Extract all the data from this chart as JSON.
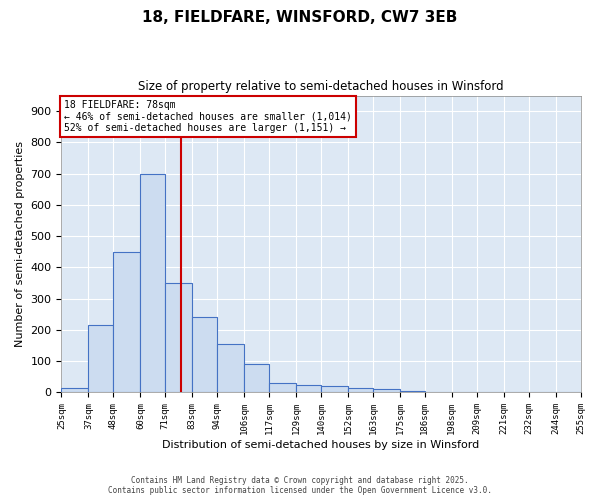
{
  "title1": "18, FIELDFARE, WINSFORD, CW7 3EB",
  "title2": "Size of property relative to semi-detached houses in Winsford",
  "xlabel": "Distribution of semi-detached houses by size in Winsford",
  "ylabel": "Number of semi-detached properties",
  "annotation_title": "18 FIELDFARE: 78sqm",
  "annotation_line1": "← 46% of semi-detached houses are smaller (1,014)",
  "annotation_line2": "52% of semi-detached houses are larger (1,151) →",
  "footer1": "Contains HM Land Registry data © Crown copyright and database right 2025.",
  "footer2": "Contains public sector information licensed under the Open Government Licence v3.0.",
  "bar_left_edges": [
    25,
    37,
    48,
    60,
    71,
    83,
    94,
    106,
    117,
    129,
    140,
    152,
    163,
    175,
    186,
    198,
    209,
    221,
    232,
    244
  ],
  "bar_widths": [
    12,
    11,
    12,
    11,
    12,
    11,
    12,
    11,
    12,
    11,
    12,
    11,
    12,
    11,
    12,
    11,
    12,
    11,
    12,
    11
  ],
  "bar_heights": [
    15,
    215,
    450,
    700,
    350,
    240,
    155,
    90,
    30,
    25,
    20,
    15,
    10,
    5,
    3,
    2,
    1,
    0,
    0,
    0
  ],
  "bar_color": "#ccdcf0",
  "bar_edge_color": "#4472c4",
  "tick_labels": [
    "25sqm",
    "37sqm",
    "48sqm",
    "60sqm",
    "71sqm",
    "83sqm",
    "94sqm",
    "106sqm",
    "117sqm",
    "129sqm",
    "140sqm",
    "152sqm",
    "163sqm",
    "175sqm",
    "186sqm",
    "198sqm",
    "209sqm",
    "221sqm",
    "232sqm",
    "244sqm",
    "255sqm"
  ],
  "tick_positions": [
    25,
    37,
    48,
    60,
    71,
    83,
    94,
    106,
    117,
    129,
    140,
    152,
    163,
    175,
    186,
    198,
    209,
    221,
    232,
    244,
    255
  ],
  "vline_x": 78,
  "vline_color": "#cc0000",
  "ylim": [
    0,
    950
  ],
  "yticks": [
    0,
    100,
    200,
    300,
    400,
    500,
    600,
    700,
    800,
    900
  ],
  "xlim": [
    25,
    255
  ],
  "bg_color": "#dde8f4",
  "grid_color": "#ffffff",
  "annotation_box_color": "#ffffff",
  "annotation_box_edge": "#cc0000"
}
